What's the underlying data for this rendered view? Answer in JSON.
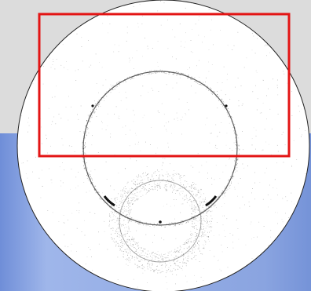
{
  "image": {
    "type": "scattering pattern",
    "colors": {
      "panel_bg": "#dcdcdc",
      "background_blue": "#8aa4e0",
      "disk_fill": "#ffffff",
      "disk_outline": "#222222",
      "ring": "#2a2a2a",
      "selection_box": "#e31414"
    },
    "features": [
      "detector-disk",
      "large-scatter-ring",
      "small-scatter-ring",
      "selection-rectangle"
    ]
  }
}
